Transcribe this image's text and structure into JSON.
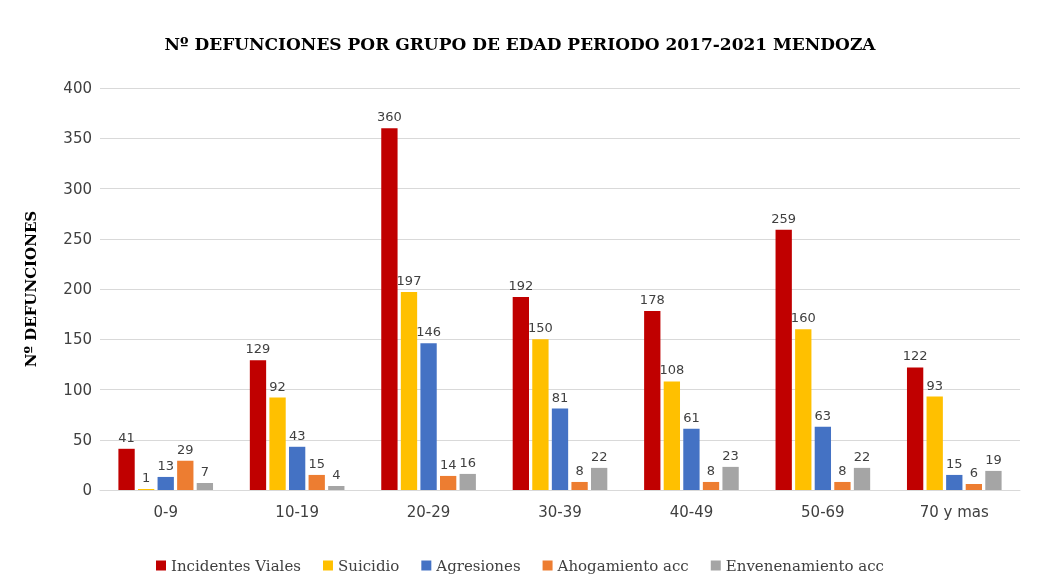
{
  "chart_data": {
    "type": "bar",
    "title": "Nº DEFUNCIONES POR GRUPO DE EDAD PERIODO 2017-2021 MENDOZA",
    "ylabel": "Nº DEFUNCIONES",
    "categories": [
      "0-9",
      "10-19",
      "20-29",
      "30-39",
      "40-49",
      "50-69",
      "70 y mas"
    ],
    "series": [
      {
        "name": "Incidentes Viales",
        "color": "#c00000",
        "values": [
          41,
          129,
          360,
          192,
          178,
          259,
          122
        ]
      },
      {
        "name": "Suicidio",
        "color": "#ffc000",
        "values": [
          1,
          92,
          197,
          150,
          108,
          160,
          93
        ]
      },
      {
        "name": "Agresiones",
        "color": "#4472c4",
        "values": [
          13,
          43,
          146,
          81,
          61,
          63,
          15
        ]
      },
      {
        "name": "Ahogamiento acc",
        "color": "#ed7d31",
        "values": [
          29,
          15,
          14,
          8,
          8,
          8,
          6
        ]
      },
      {
        "name": "Envenenamiento acc",
        "color": "#a5a5a5",
        "values": [
          7,
          4,
          16,
          22,
          23,
          22,
          19
        ]
      }
    ],
    "ylim": [
      0,
      400
    ],
    "yticks": [
      0,
      50,
      100,
      150,
      200,
      250,
      300,
      350,
      400
    ],
    "grid": "y",
    "legend": "bottom",
    "data_labels": true
  }
}
